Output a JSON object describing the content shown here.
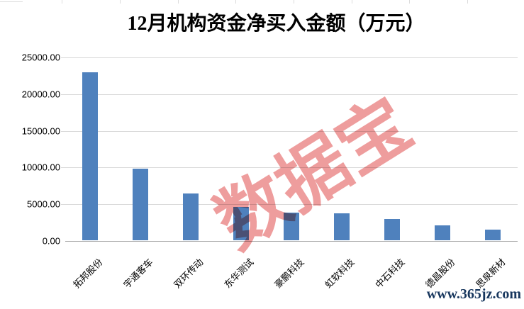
{
  "chart_data": {
    "type": "bar",
    "title": "12月机构资金净买入金额（万元）",
    "categories": [
      "拓邦股份",
      "宇通客车",
      "双环传动",
      "东华测试",
      "豪鹏科技",
      "虹软科技",
      "中石科技",
      "德昌股份",
      "思泉新材"
    ],
    "values": [
      22900,
      9750,
      6400,
      4550,
      3800,
      3700,
      2850,
      2050,
      1450
    ],
    "xlabel": "",
    "ylabel": "",
    "ylim": [
      0,
      25000
    ],
    "ytick_values": [
      0,
      5000,
      10000,
      15000,
      20000,
      25000
    ],
    "ytick_labels": [
      "0.00",
      "5000.00",
      "10000.00",
      "15000.00",
      "20000.00",
      "25000.00"
    ],
    "grid": true,
    "legend": false,
    "bar_color": "#4f81bd",
    "gridline_color": "#d9d9d9",
    "axis_line_color": "#a6a6a6",
    "tick_label_color": "#000000",
    "title_color": "#000000"
  },
  "watermark": {
    "text": "数据宝",
    "color": "#ee9d9d"
  },
  "footer": {
    "url": "www.365jz.com",
    "color": "#17365d"
  }
}
